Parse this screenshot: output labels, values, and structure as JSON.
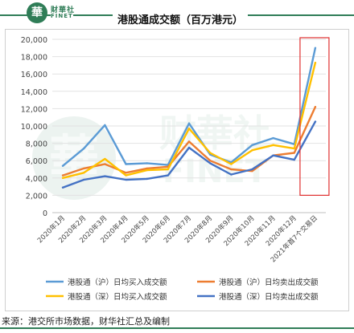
{
  "brand": {
    "logo_char": "華",
    "name": "财華社",
    "sub": "FINET",
    "watermark_char": "華"
  },
  "title": "港股通成交额（百万港元）",
  "source": "来源：港交所市场数据，财华社汇总及编制",
  "colors": {
    "sh_buy": "#5b9bd5",
    "sh_sell": "#ed7d31",
    "sz_buy": "#ffc000",
    "sz_sell": "#4472c4",
    "highlight": "#e03030",
    "brand": "#2f7d57"
  },
  "chart_data": {
    "type": "line",
    "title": "港股通成交额（百万港元）",
    "categories": [
      "2020年1月",
      "2020年2月",
      "2020年3月",
      "2020年4月",
      "2020年5月",
      "2020年6月",
      "2020年7月",
      "2020年8月",
      "2020年9月",
      "2020年10月",
      "2020年11月",
      "2020年12月",
      "2021年首7个交易日"
    ],
    "ylim": [
      0,
      20000
    ],
    "yticks": [
      "0",
      "2,000",
      "4,000",
      "6,000",
      "8,000",
      "10,000",
      "12,000",
      "14,000",
      "16,000",
      "18,000",
      "20,000"
    ],
    "grid": true,
    "legend_position": "bottom",
    "series": [
      {
        "key": "sh_buy",
        "name": "港股通（沪）日均买入成交额",
        "values": [
          5400,
          7400,
          10100,
          5600,
          5700,
          5500,
          10300,
          6700,
          5800,
          7800,
          8600,
          7900,
          19000
        ]
      },
      {
        "key": "sh_sell",
        "name": "港股通（沪）日均卖出成交额",
        "values": [
          4300,
          5100,
          5600,
          4600,
          5100,
          5300,
          8200,
          6000,
          5000,
          4800,
          6600,
          6900,
          12200
        ]
      },
      {
        "key": "sz_buy",
        "name": "港股通（深）日均买入成交额",
        "values": [
          4000,
          4600,
          6200,
          4300,
          4900,
          5000,
          9700,
          6900,
          5600,
          7200,
          7800,
          7400,
          17300
        ]
      },
      {
        "key": "sz_sell",
        "name": "港股通（深）日均卖出成交额",
        "values": [
          2900,
          3800,
          4200,
          3800,
          3900,
          4300,
          7500,
          5700,
          4400,
          5000,
          6600,
          6100,
          10500
        ]
      }
    ]
  }
}
